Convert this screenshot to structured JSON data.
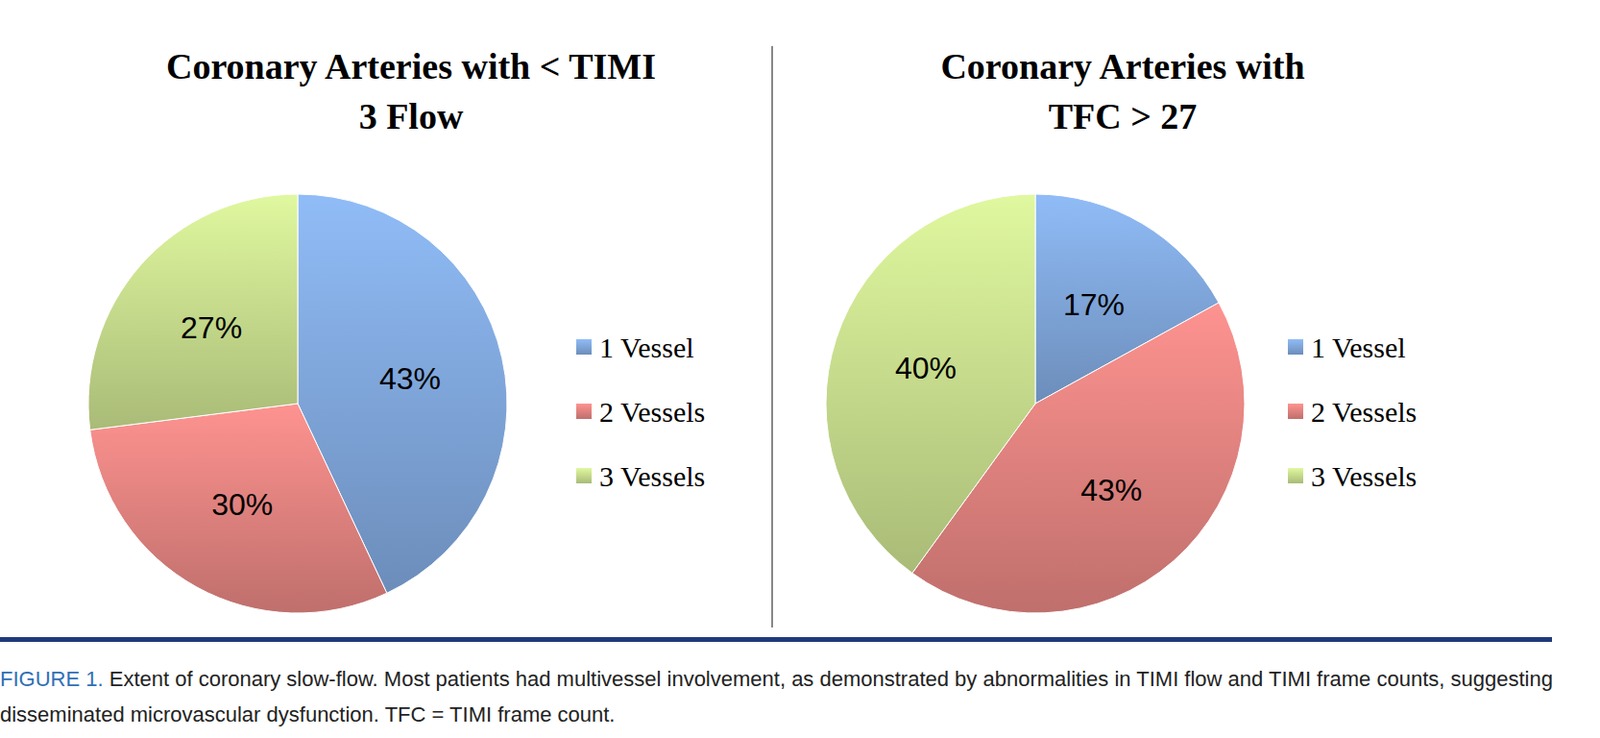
{
  "chart_data": [
    {
      "type": "pie",
      "title": [
        "Coronary Arteries with < TIMI",
        "3 Flow"
      ],
      "categories": [
        "1 Vessel",
        "2 Vessels",
        "3 Vessels"
      ],
      "values": [
        43,
        30,
        27
      ],
      "value_labels": [
        "43%",
        "30%",
        "27%"
      ],
      "colors": [
        "#7fa6da",
        "#e0827f",
        "#c6db8c"
      ],
      "data_labels": true,
      "legend": "right"
    },
    {
      "type": "pie",
      "title": [
        "Coronary Arteries with",
        "TFC > 27"
      ],
      "categories": [
        "1 Vessel",
        "2 Vessels",
        "3 Vessels"
      ],
      "values": [
        17,
        43,
        40
      ],
      "value_labels": [
        "17%",
        "43%",
        "40%"
      ],
      "colors": [
        "#7fa6da",
        "#e0827f",
        "#c6db8c"
      ],
      "data_labels": true,
      "legend": "right"
    }
  ],
  "caption": {
    "label": "FIGURE 1.",
    "text": "Extent of coronary slow-flow. Most patients had multivessel involvement, as demonstrated by abnormalities in TIMI flow and TIMI frame counts, suggesting disseminated microvascular dysfunction. TFC = TIMI frame count."
  }
}
